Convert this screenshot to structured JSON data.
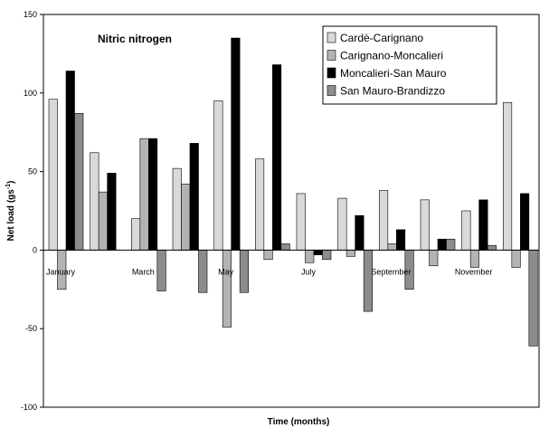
{
  "chart_data": {
    "type": "bar",
    "title": "Nitric nitrogen",
    "xlabel": "Time (months)",
    "ylabel": "Net load (gs",
    "ylabel_sup": "-1",
    "ylabel_end": ")",
    "ylim": [
      -100,
      150
    ],
    "yticks": [
      -100,
      -50,
      0,
      50,
      100,
      150
    ],
    "legend_position": "top-right",
    "grid": false,
    "month_labels": [
      {
        "label": "January",
        "index": 0
      },
      {
        "label": "March",
        "index": 2
      },
      {
        "label": "May",
        "index": 4
      },
      {
        "label": "July",
        "index": 6
      },
      {
        "label": "September",
        "index": 8
      },
      {
        "label": "November",
        "index": 10
      }
    ],
    "series": [
      {
        "name": "Cardè-Carignano",
        "color": "#d9d9d9",
        "values": [
          96,
          62,
          20,
          52,
          95,
          58,
          36,
          33,
          38,
          32,
          25,
          94
        ]
      },
      {
        "name": "Carignano-Moncalieri",
        "color": "#b3b3b3",
        "values": [
          -25,
          37,
          71,
          42,
          -49,
          -6,
          -8,
          -4,
          4,
          -10,
          -11,
          -11
        ]
      },
      {
        "name": "Moncalieri-San Mauro",
        "color": "#000000",
        "values": [
          114,
          49,
          71,
          68,
          135,
          118,
          -3,
          22,
          13,
          7,
          32,
          36
        ]
      },
      {
        "name": "San Mauro-Brandizzo",
        "color": "#8c8c8c",
        "values": [
          87,
          0,
          -26,
          -27,
          -27,
          4,
          -6,
          -39,
          -25,
          7,
          3,
          -61
        ]
      }
    ]
  }
}
